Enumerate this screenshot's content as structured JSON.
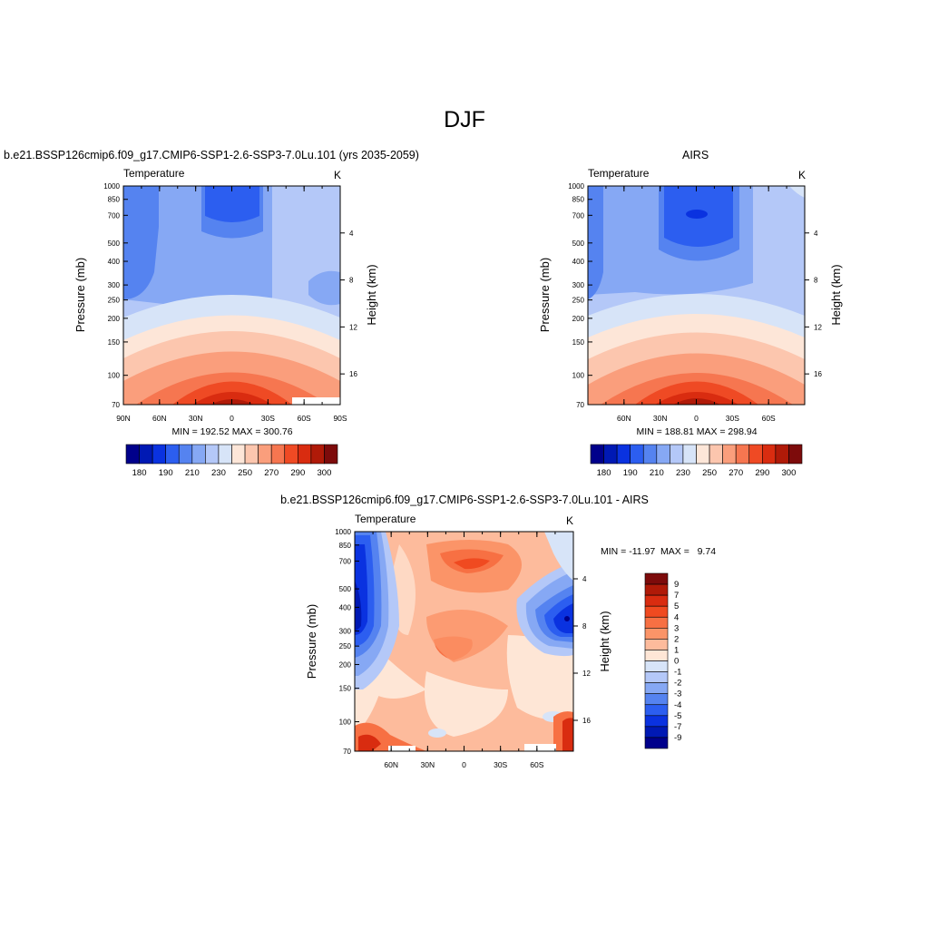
{
  "figure": {
    "title": "DJF"
  },
  "panels": {
    "model": {
      "case_title": "b.e21.BSSP126cmip6.f09_g17.CMIP6-SSP1-2.6-SSP3-7.0Lu.101 (yrs 2035-2059)",
      "left_label": "Temperature",
      "right_label": "K",
      "ylabel": "Pressure (mb)",
      "y2label": "Height (km)",
      "stats": "MIN = 192.52  MAX = 300.76"
    },
    "obs": {
      "case_title": "AIRS",
      "left_label": "Temperature",
      "right_label": "K",
      "ylabel": "Pressure (mb)",
      "y2label": "Height (km)",
      "stats": "MIN = 188.81  MAX = 298.94"
    },
    "diff": {
      "case_title": "b.e21.BSSP126cmip6.f09_g17.CMIP6-SSP1-2.6-SSP3-7.0Lu.101 - AIRS",
      "left_label": "Temperature",
      "right_label": "K",
      "ylabel": "Pressure (mb)",
      "y2label": "Height (km)",
      "stats": "MIN = -11.97  MAX =   9.74"
    }
  },
  "chart_data": [
    {
      "type": "heatmap",
      "name": "model",
      "pressure_ticks": [
        70,
        100,
        150,
        200,
        250,
        300,
        400,
        500,
        700,
        850,
        1000
      ],
      "height_ticks": [
        4,
        8,
        12,
        16
      ],
      "lat_ticks": [
        "90N",
        "60N",
        "30N",
        "0",
        "30S",
        "60S",
        "90S"
      ],
      "colorbar_labels": [
        "180",
        "190",
        "210",
        "230",
        "250",
        "270",
        "290",
        "300"
      ],
      "min": 192.52,
      "max": 300.76
    },
    {
      "type": "heatmap",
      "name": "obs",
      "pressure_ticks": [
        70,
        100,
        150,
        200,
        250,
        300,
        400,
        500,
        700,
        850,
        1000
      ],
      "height_ticks": [
        4,
        8,
        12,
        16
      ],
      "lat_ticks": [
        "60N",
        "30N",
        "0",
        "30S",
        "60S"
      ],
      "colorbar_labels": [
        "180",
        "190",
        "210",
        "230",
        "250",
        "270",
        "290",
        "300"
      ],
      "min": 188.81,
      "max": 298.94
    },
    {
      "type": "heatmap",
      "name": "diff",
      "pressure_ticks": [
        70,
        100,
        150,
        200,
        250,
        300,
        400,
        500,
        700,
        850,
        1000
      ],
      "height_ticks": [
        4,
        8,
        12,
        16
      ],
      "lat_ticks": [
        "60N",
        "30N",
        "0",
        "30S",
        "60S"
      ],
      "colorbar_labels": [
        "9",
        "7",
        "5",
        "4",
        "3",
        "2",
        "1",
        "0",
        "-1",
        "-2",
        "-3",
        "-4",
        "-5",
        "-7",
        "-9"
      ],
      "min": -11.97,
      "max": 9.74
    }
  ],
  "colors": {
    "temp_scale": [
      "#00008b",
      "#0019b4",
      "#0a32e0",
      "#2c5ef0",
      "#5583f0",
      "#86a8f4",
      "#b4c8f8",
      "#d7e4f8",
      "#fde6d8",
      "#fcc6ae",
      "#fa9e7c",
      "#f67650",
      "#ef4a24",
      "#d92c10",
      "#b01a08",
      "#7d0b0b"
    ],
    "diff_scale": [
      "#7d0b0b",
      "#b01a08",
      "#d92c10",
      "#f04a20",
      "#f77043",
      "#fb9468",
      "#fdbb9c",
      "#fee6d6",
      "#d7e4f8",
      "#b4c8f8",
      "#86a8f4",
      "#5583f0",
      "#2c5ef0",
      "#0a32e0",
      "#0019b4",
      "#00008b"
    ]
  }
}
